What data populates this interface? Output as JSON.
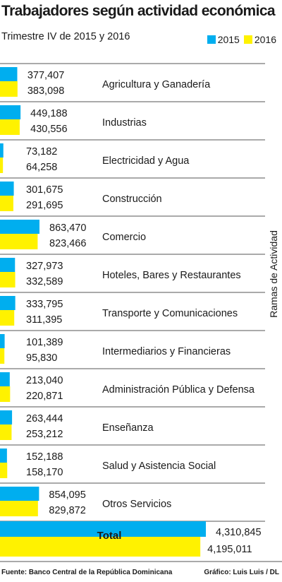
{
  "chart_data": {
    "type": "bar",
    "title": "Trabajadores según actividad económica",
    "subtitle": "Trimestre IV de 2015 y 2016",
    "axis_label": "Ramas de Actividad",
    "orientation": "horizontal",
    "categories": [
      "Agricultura y Ganadería",
      "Industrias",
      "Electricidad y Agua",
      "Construcción",
      "Comercio",
      "Hoteles, Bares y Restaurantes",
      "Transporte y Comunicaciones",
      "Intermediarios y Financieras",
      "Administración Pública y Defensa",
      "Enseñanza",
      "Salud y Asistencia Social",
      "Otros Servicios"
    ],
    "series": [
      {
        "name": "2015",
        "color": "#00AEEF",
        "values": [
          377407,
          449188,
          73182,
          301675,
          863470,
          327973,
          333795,
          101389,
          213040,
          263444,
          152188,
          854095
        ],
        "labels": [
          "377,407",
          "449,188",
          "73,182",
          "301,675",
          "863,470",
          "327,973",
          "333,795",
          "101,389",
          "213,040",
          "263,444",
          "152,188",
          "854,095"
        ]
      },
      {
        "name": "2016",
        "color": "#FFF200",
        "values": [
          383098,
          430556,
          64258,
          291695,
          823466,
          332589,
          311395,
          95830,
          220871,
          253212,
          158170,
          829872
        ],
        "labels": [
          "383,098",
          "430,556",
          "64,258",
          "291,695",
          "823,466",
          "332,589",
          "311,395",
          "95,830",
          "220,871",
          "253,212",
          "158,170",
          "829,872"
        ]
      }
    ],
    "total": {
      "label": "Total",
      "values": [
        4310845,
        4195011
      ],
      "labels": [
        "4,310,845",
        "4,195,011"
      ]
    },
    "grid": false,
    "legend_position": "top-right"
  },
  "footer": {
    "source": "Fuente: Banco Central de la República Dominicana",
    "credit": "Gráfico: Luis Luis / DL"
  }
}
